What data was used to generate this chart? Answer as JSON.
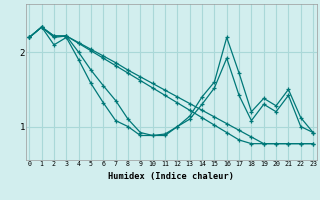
{
  "xlabel": "Humidex (Indice chaleur)",
  "bg_color": "#d2eeee",
  "grid_color": "#aad8d8",
  "line_color": "#007878",
  "x_ticks": [
    0,
    1,
    2,
    3,
    4,
    5,
    6,
    7,
    8,
    9,
    10,
    11,
    12,
    13,
    14,
    15,
    16,
    17,
    18,
    19,
    20,
    21,
    22,
    23
  ],
  "y_ticks": [
    1,
    2
  ],
  "xlim": [
    -0.3,
    23.3
  ],
  "ylim": [
    0.55,
    2.65
  ],
  "series": [
    [
      2.2,
      2.34,
      2.22,
      2.22,
      2.13,
      2.04,
      1.95,
      1.86,
      1.76,
      1.67,
      1.58,
      1.49,
      1.4,
      1.31,
      1.22,
      1.13,
      1.04,
      0.95,
      0.86,
      0.77,
      0.77,
      0.77,
      0.77,
      0.77
    ],
    [
      2.2,
      2.34,
      2.22,
      2.22,
      2.12,
      2.02,
      1.92,
      1.82,
      1.72,
      1.62,
      1.52,
      1.42,
      1.32,
      1.22,
      1.12,
      1.02,
      0.92,
      0.82,
      0.77,
      0.77,
      0.77,
      0.77,
      0.77,
      0.77
    ],
    [
      2.2,
      2.34,
      2.2,
      2.22,
      2.0,
      1.76,
      1.55,
      1.35,
      1.1,
      0.92,
      0.88,
      0.9,
      1.0,
      1.14,
      1.4,
      1.6,
      2.2,
      1.72,
      1.2,
      1.38,
      1.28,
      1.5,
      1.12,
      0.92
    ],
    [
      2.2,
      2.34,
      2.1,
      2.2,
      1.9,
      1.58,
      1.32,
      1.08,
      1.0,
      0.88,
      0.88,
      0.88,
      1.0,
      1.1,
      1.3,
      1.52,
      1.92,
      1.42,
      1.08,
      1.3,
      1.2,
      1.42,
      1.0,
      0.92
    ]
  ]
}
